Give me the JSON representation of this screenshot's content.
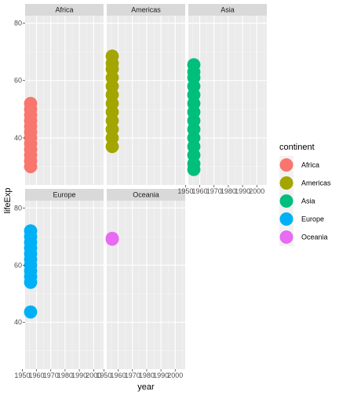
{
  "chart_data": {
    "type": "scatter",
    "facet_by": "continent",
    "xlabel": "year",
    "ylabel": "lifeExp",
    "xlim": [
      1952,
      2007
    ],
    "ylim": [
      23.6,
      82.6
    ],
    "x_ticks": [
      1950,
      1960,
      1970,
      1980,
      1990,
      2000
    ],
    "y_ticks": [
      40,
      60,
      80
    ],
    "grid": true,
    "legend": {
      "title": "continent",
      "placement": "right",
      "entries": [
        {
          "label": "Africa",
          "color": "#F8766D"
        },
        {
          "label": "Americas",
          "color": "#A3A500"
        },
        {
          "label": "Asia",
          "color": "#00BF7D"
        },
        {
          "label": "Europe",
          "color": "#00B0F6"
        },
        {
          "label": "Oceania",
          "color": "#E76BF3"
        }
      ]
    },
    "facets": [
      {
        "name": "Africa",
        "color": "#F8766D",
        "points": [
          [
            1952,
            30
          ],
          [
            1952,
            32
          ],
          [
            1952,
            34
          ],
          [
            1952,
            36
          ],
          [
            1952,
            38
          ],
          [
            1952,
            40
          ],
          [
            1952,
            42
          ],
          [
            1952,
            44
          ],
          [
            1952,
            46
          ],
          [
            1952,
            48
          ],
          [
            1952,
            50
          ],
          [
            1952,
            52
          ]
        ]
      },
      {
        "name": "Americas",
        "color": "#A3A500",
        "points": [
          [
            1952,
            37
          ],
          [
            1952,
            40
          ],
          [
            1952,
            43
          ],
          [
            1952,
            46
          ],
          [
            1952,
            49
          ],
          [
            1952,
            52
          ],
          [
            1952,
            55
          ],
          [
            1952,
            58
          ],
          [
            1952,
            61
          ],
          [
            1952,
            64
          ],
          [
            1952,
            66
          ],
          [
            1952,
            68.5
          ]
        ]
      },
      {
        "name": "Asia",
        "color": "#00BF7D",
        "points": [
          [
            1952,
            29
          ],
          [
            1952,
            31
          ],
          [
            1952,
            34
          ],
          [
            1952,
            37
          ],
          [
            1952,
            40
          ],
          [
            1952,
            43
          ],
          [
            1952,
            46
          ],
          [
            1952,
            49
          ],
          [
            1952,
            52
          ],
          [
            1952,
            55
          ],
          [
            1952,
            58
          ],
          [
            1952,
            61
          ],
          [
            1952,
            63
          ],
          [
            1952,
            65.5
          ]
        ]
      },
      {
        "name": "Europe",
        "color": "#00B0F6",
        "points": [
          [
            1952,
            43.6
          ],
          [
            1952,
            54
          ],
          [
            1952,
            56
          ],
          [
            1952,
            58
          ],
          [
            1952,
            60
          ],
          [
            1952,
            62
          ],
          [
            1952,
            64
          ],
          [
            1952,
            66
          ],
          [
            1952,
            68
          ],
          [
            1952,
            70
          ],
          [
            1952,
            72
          ]
        ]
      },
      {
        "name": "Oceania",
        "color": "#E76BF3",
        "points": [
          [
            1952,
            69.1
          ],
          [
            1952,
            69.4
          ]
        ]
      }
    ]
  }
}
